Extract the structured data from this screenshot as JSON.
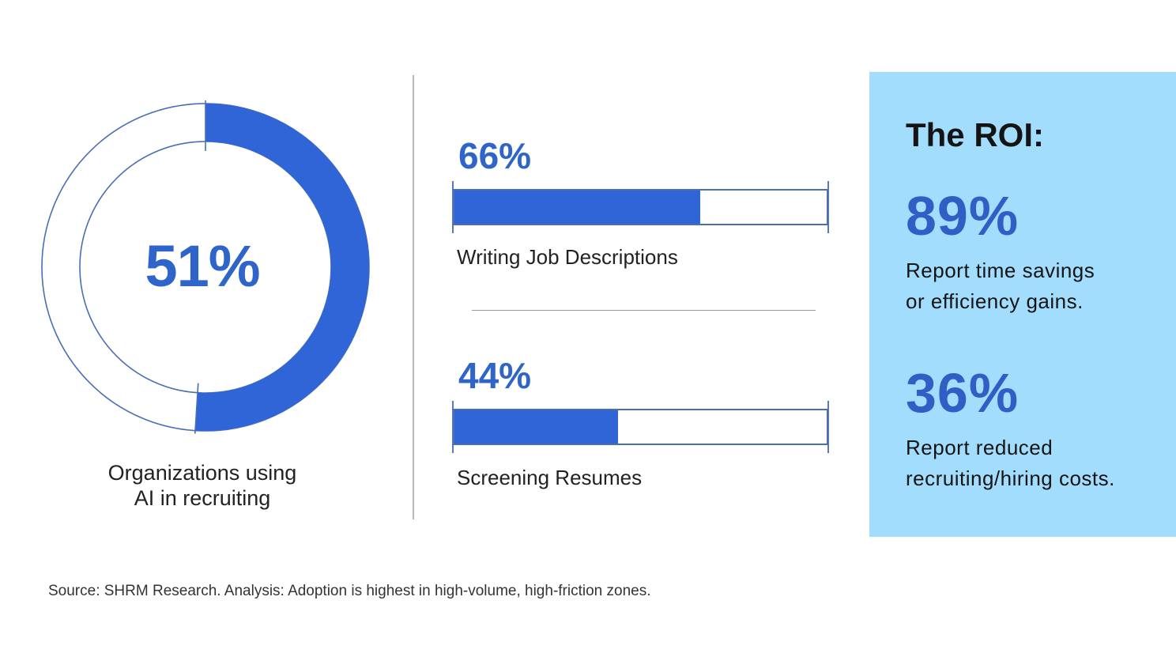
{
  "chart_data": [
    {
      "type": "pie",
      "value": 51,
      "value_label": "51%",
      "caption_lines": [
        "Organizations using",
        "AI in recruiting"
      ]
    },
    {
      "type": "bar",
      "orientation": "horizontal",
      "categories": [
        "Writing Job Descriptions",
        "Screening Resumes"
      ],
      "values": [
        66,
        44
      ],
      "value_labels": [
        "66%",
        "44%"
      ],
      "xlim": [
        0,
        100
      ]
    }
  ],
  "roi": {
    "title": "The ROI:",
    "items": [
      {
        "value": "89%",
        "line1": "Report time savings",
        "line2": "or efficiency gains."
      },
      {
        "value": "36%",
        "line1": "Report reduced",
        "line2": "recruiting/hiring costs."
      }
    ]
  },
  "source": "Source: SHRM Research. Analysis: Adoption is highest in high-volume, high-friction zones.",
  "colors": {
    "accent": "#2f65d6",
    "accent_text": "#2f65c8",
    "panel": "#a3ddfd",
    "outline": "#4a6eb5"
  }
}
